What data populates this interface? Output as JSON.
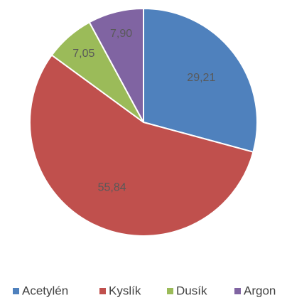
{
  "chart_data": {
    "type": "pie",
    "categories": [
      "Acetylén",
      "Kyslík",
      "Dusík",
      "Argon"
    ],
    "values": [
      29.21,
      55.84,
      7.05,
      7.9
    ],
    "value_labels": [
      "29,21",
      "55,84",
      "7,05",
      "7,90"
    ],
    "colors": [
      "#4f81bd",
      "#c0504d",
      "#9bbb59",
      "#8064a2"
    ],
    "legend": "bottom"
  }
}
